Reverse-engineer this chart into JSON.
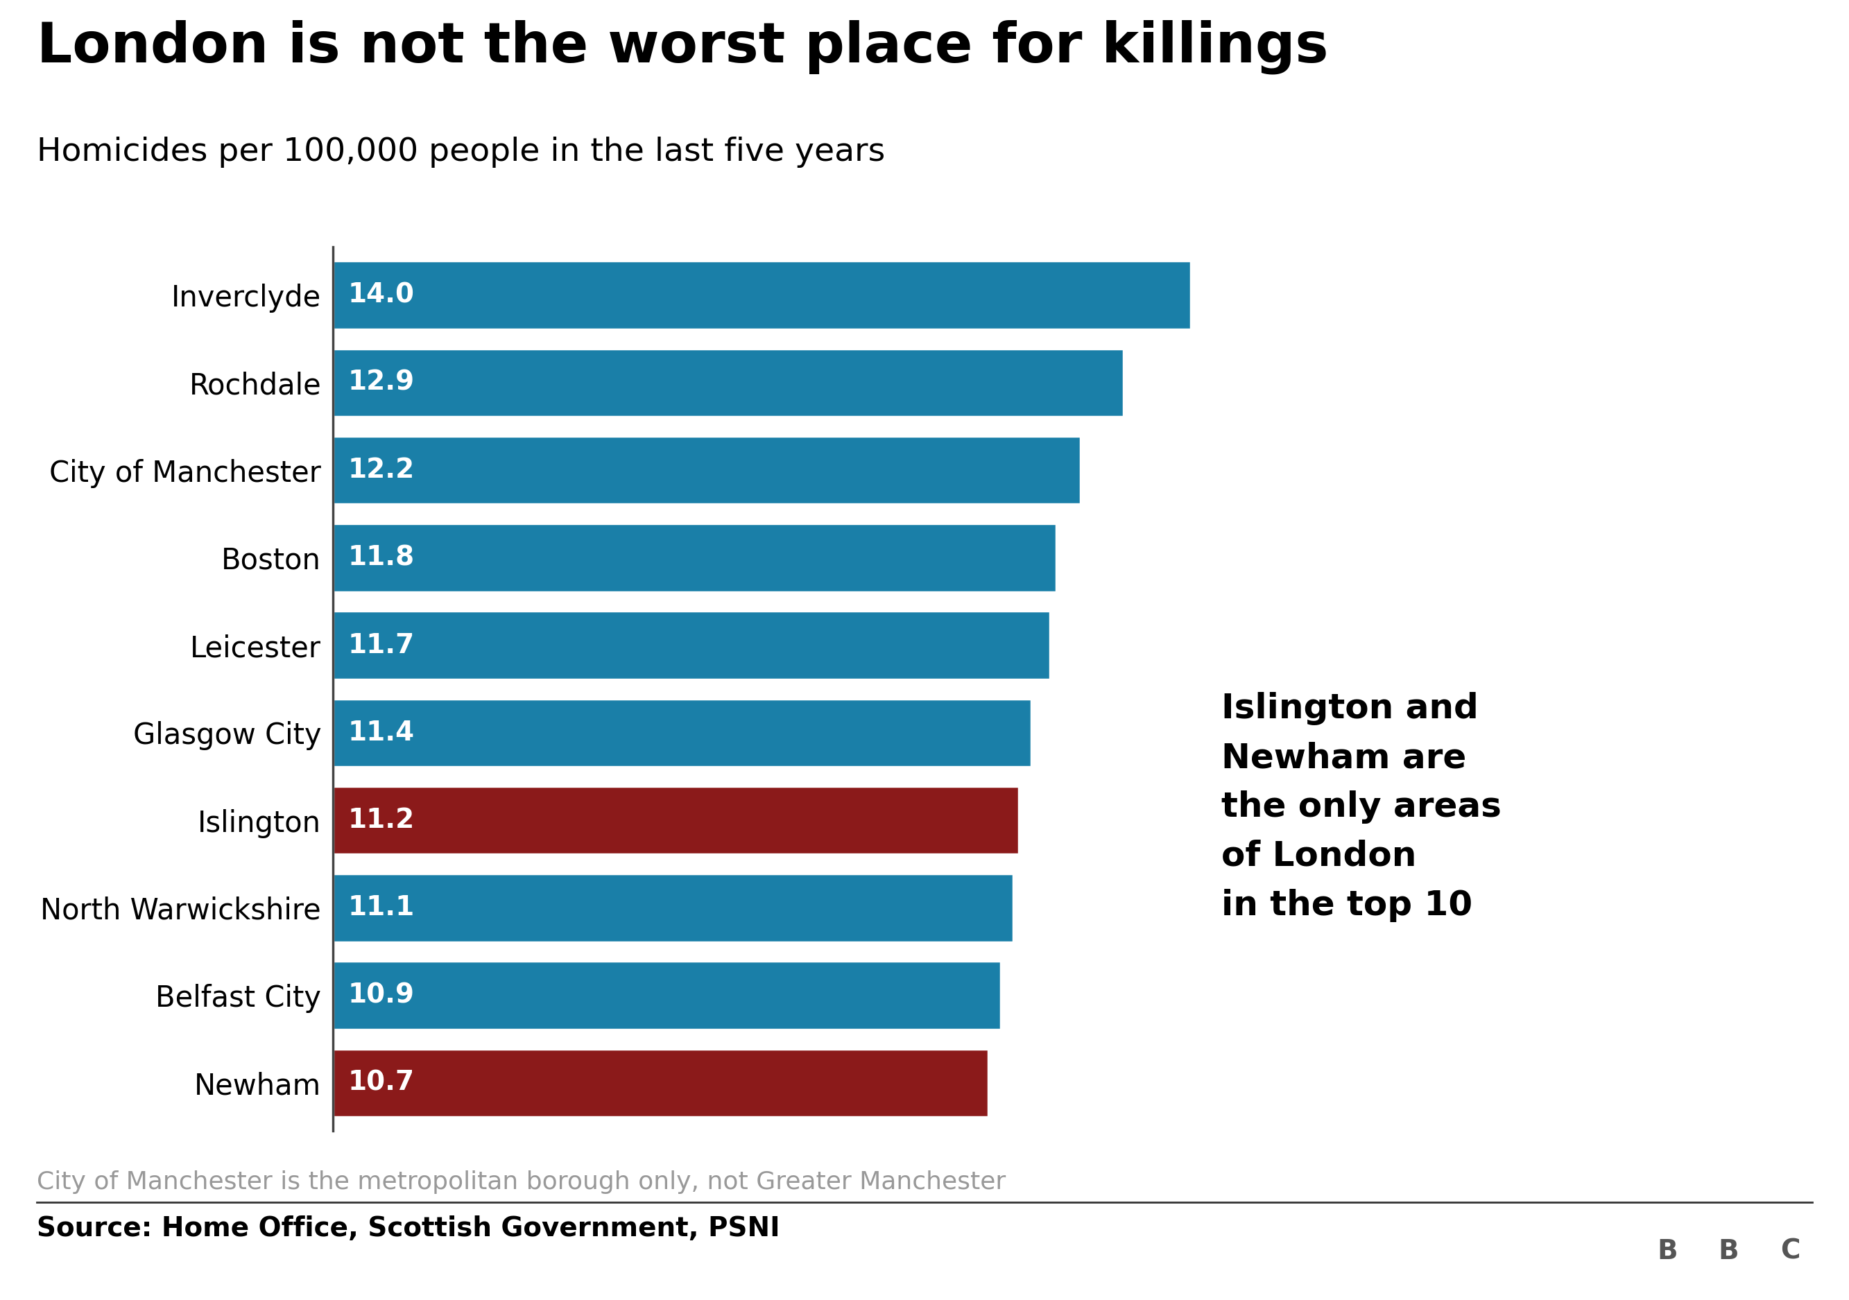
{
  "title": "London is not the worst place for killings",
  "subtitle": "Homicides per 100,000 people in the last five years",
  "categories": [
    "Newham",
    "Belfast City",
    "North Warwickshire",
    "Islington",
    "Glasgow City",
    "Leicester",
    "Boston",
    "City of Manchester",
    "Rochdale",
    "Inverclyde"
  ],
  "values": [
    10.7,
    10.9,
    11.1,
    11.2,
    11.4,
    11.7,
    11.8,
    12.2,
    12.9,
    14.0
  ],
  "colors": [
    "#8b1a1a",
    "#1a7fa8",
    "#1a7fa8",
    "#8b1a1a",
    "#1a7fa8",
    "#1a7fa8",
    "#1a7fa8",
    "#1a7fa8",
    "#1a7fa8",
    "#1a7fa8"
  ],
  "annotation_text": "Islington and\nNewham are\nthe only areas\nof London\nin the top 10",
  "note": "City of Manchester is the metropolitan borough only, not Greater Manchester",
  "source": "Source: Home Office, Scottish Government, PSNI",
  "bg_color": "#ffffff",
  "bar_label_color": "#ffffff",
  "title_color": "#000000",
  "subtitle_color": "#000000",
  "note_color": "#999999",
  "source_color": "#000000",
  "xlim": [
    0,
    17.5
  ],
  "title_fontsize": 58,
  "subtitle_fontsize": 34,
  "bar_label_fontsize": 28,
  "annotation_fontsize": 36,
  "note_fontsize": 26,
  "source_fontsize": 28,
  "category_fontsize": 30
}
